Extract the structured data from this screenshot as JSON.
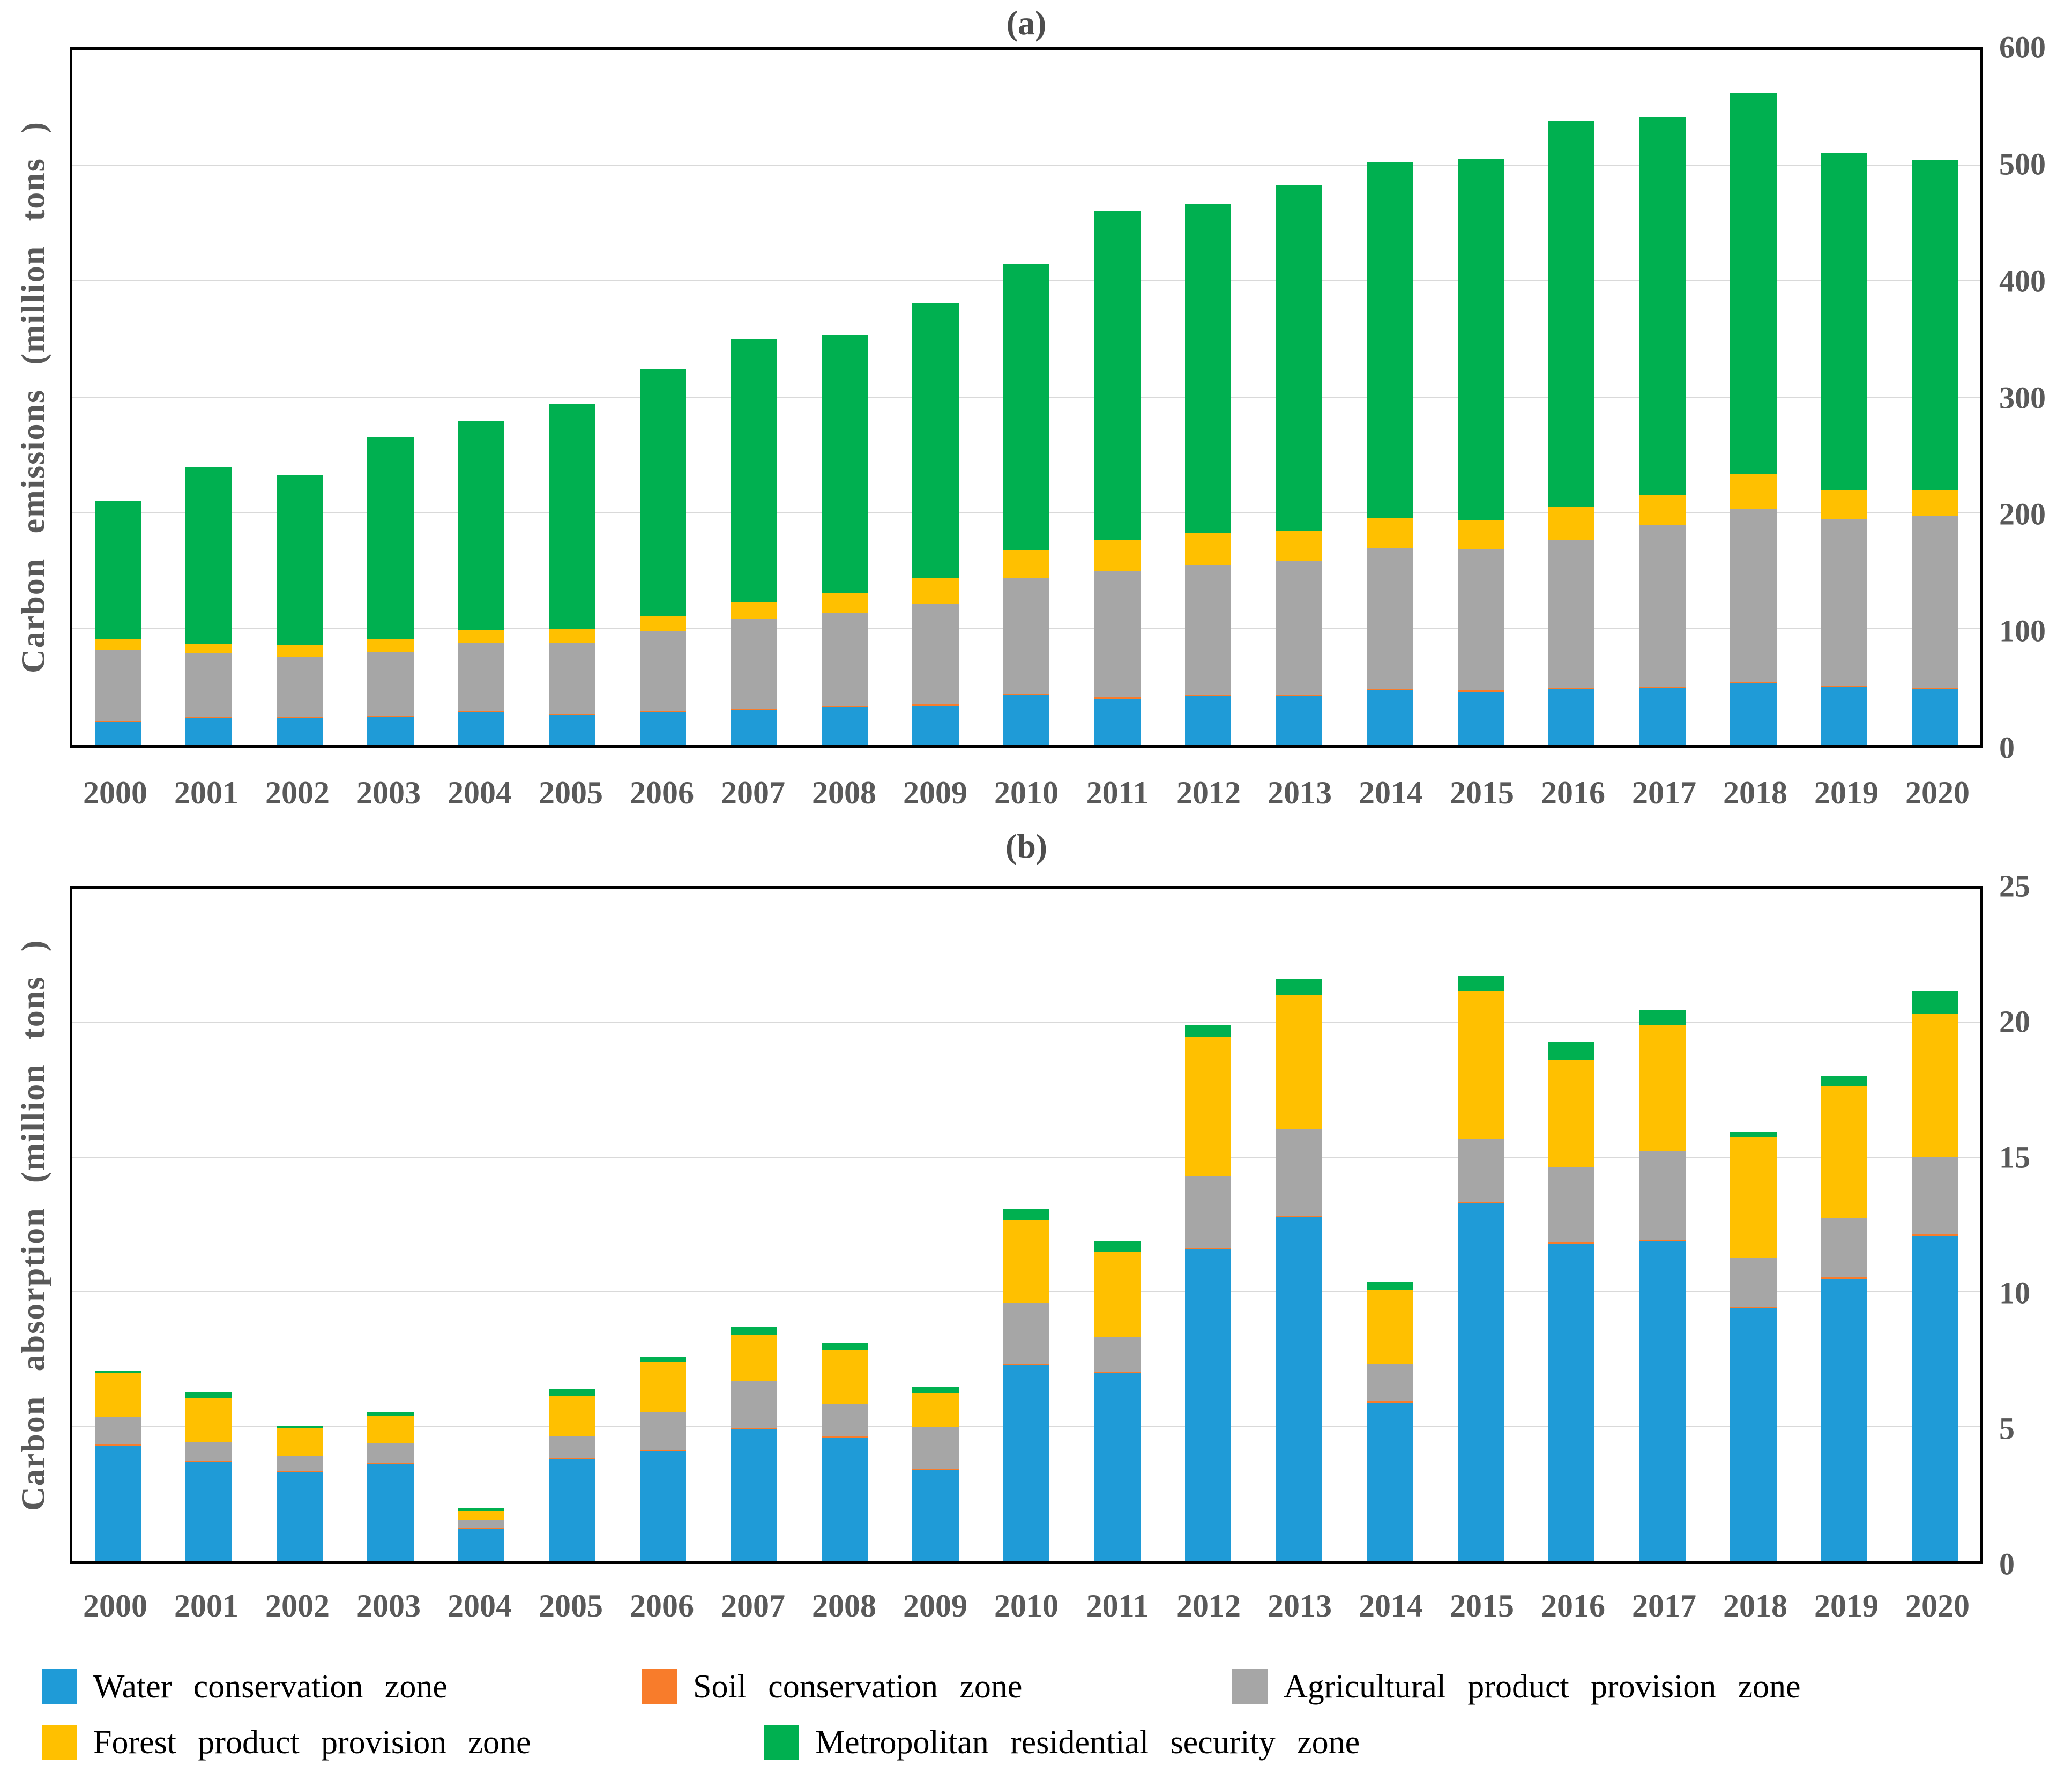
{
  "figure": {
    "background": "#ffffff",
    "text_color_axis": "#595959",
    "grid_color": "#d9d9d9",
    "border_color": "#000000"
  },
  "legend": {
    "items": [
      {
        "label": "Water conservation zone",
        "color": "#1f9bd7",
        "swatch": "blue-square-icon"
      },
      {
        "label": "Soil conservation zone",
        "color": "#f87c2b",
        "swatch": "orange-square-icon"
      },
      {
        "label": "Agricultural product provision zone",
        "color": "#a6a6a6",
        "swatch": "gray-square-icon"
      },
      {
        "label": "Forest product provision zone",
        "color": "#ffc000",
        "swatch": "yellow-square-icon"
      },
      {
        "label": "Metropolitan residential security zone",
        "color": "#00b050",
        "swatch": "green-square-icon"
      }
    ]
  },
  "chart_data": [
    {
      "type": "bar",
      "stacked": true,
      "title": "(a)",
      "ylabel": "Carbon emissions (million tons )",
      "xlabel": "",
      "ylim": [
        0,
        600
      ],
      "yticks": [
        0,
        100,
        200,
        300,
        400,
        500,
        600
      ],
      "y_axis_side": "right",
      "grid": true,
      "legend_position": "bottom",
      "categories": [
        "2000",
        "2001",
        "2002",
        "2003",
        "2004",
        "2005",
        "2006",
        "2007",
        "2008",
        "2009",
        "2010",
        "2011",
        "2012",
        "2013",
        "2014",
        "2015",
        "2016",
        "2017",
        "2018",
        "2019",
        "2020"
      ],
      "series": [
        {
          "name": "Water conservation zone",
          "color": "#1f9bd7",
          "values": [
            20,
            23,
            23,
            24,
            28,
            26,
            28,
            30,
            33,
            34,
            43,
            40,
            42,
            42,
            47,
            46,
            48,
            49,
            53,
            50,
            48
          ]
        },
        {
          "name": "Soil conservation zone",
          "color": "#f87c2b",
          "values": [
            1,
            1,
            1,
            1,
            1,
            1,
            1,
            1,
            1,
            1,
            1,
            1,
            1,
            1,
            1,
            1,
            1,
            1,
            1,
            1,
            1
          ]
        },
        {
          "name": "Agricultural product provision zone",
          "color": "#a6a6a6",
          "values": [
            61,
            55,
            52,
            55,
            59,
            61,
            69,
            78,
            80,
            87,
            100,
            109,
            112,
            116,
            122,
            122,
            128,
            140,
            150,
            144,
            149
          ]
        },
        {
          "name": "Forest product provision zone",
          "color": "#ffc000",
          "values": [
            9,
            8,
            10,
            11,
            11,
            12,
            13,
            14,
            17,
            22,
            24,
            27,
            28,
            26,
            26,
            25,
            29,
            26,
            30,
            25,
            22
          ]
        },
        {
          "name": "Metropolitan residential security zone",
          "color": "#00b050",
          "values": [
            120,
            153,
            147,
            175,
            181,
            194,
            214,
            227,
            223,
            237,
            247,
            284,
            284,
            298,
            307,
            312,
            333,
            326,
            329,
            291,
            285
          ]
        }
      ]
    },
    {
      "type": "bar",
      "stacked": true,
      "title": "(b)",
      "ylabel": "Carbon absorption (million tons )",
      "xlabel": "",
      "ylim": [
        0,
        25
      ],
      "yticks": [
        0,
        5,
        10,
        15,
        20,
        25
      ],
      "y_axis_side": "right",
      "grid": true,
      "legend_position": "bottom",
      "categories": [
        "2000",
        "2001",
        "2002",
        "2003",
        "2004",
        "2005",
        "2006",
        "2007",
        "2008",
        "2009",
        "2010",
        "2011",
        "2012",
        "2013",
        "2014",
        "2015",
        "2016",
        "2017",
        "2018",
        "2019",
        "2020"
      ],
      "series": [
        {
          "name": "Water conservation zone",
          "color": "#1f9bd7",
          "values": [
            4.3,
            3.7,
            3.3,
            3.6,
            1.2,
            3.8,
            4.1,
            4.9,
            4.6,
            3.4,
            7.3,
            7.0,
            11.6,
            12.8,
            5.9,
            13.3,
            11.8,
            11.9,
            9.4,
            10.5,
            12.1
          ]
        },
        {
          "name": "Soil conservation zone",
          "color": "#f87c2b",
          "values": [
            0.05,
            0.05,
            0.05,
            0.05,
            0.06,
            0.05,
            0.05,
            0.05,
            0.05,
            0.05,
            0.05,
            0.05,
            0.05,
            0.05,
            0.05,
            0.05,
            0.05,
            0.05,
            0.05,
            0.05,
            0.05
          ]
        },
        {
          "name": "Agricultural product provision zone",
          "color": "#a6a6a6",
          "values": [
            1.0,
            0.7,
            0.55,
            0.75,
            0.3,
            0.8,
            1.4,
            1.75,
            1.2,
            1.55,
            2.25,
            1.3,
            2.65,
            3.2,
            1.4,
            2.35,
            2.8,
            3.3,
            1.8,
            2.2,
            2.9
          ]
        },
        {
          "name": "Forest product provision zone",
          "color": "#ffc000",
          "values": [
            1.65,
            1.6,
            1.05,
            1.0,
            0.3,
            1.5,
            1.85,
            1.7,
            2.0,
            1.25,
            3.1,
            3.15,
            5.2,
            5.0,
            2.75,
            5.5,
            4.0,
            4.7,
            4.5,
            4.9,
            5.3
          ]
        },
        {
          "name": "Metropolitan residential security zone",
          "color": "#00b050",
          "values": [
            0.1,
            0.25,
            0.1,
            0.15,
            0.12,
            0.25,
            0.2,
            0.3,
            0.25,
            0.25,
            0.4,
            0.4,
            0.45,
            0.6,
            0.3,
            0.55,
            0.65,
            0.55,
            0.2,
            0.4,
            0.85
          ]
        }
      ]
    }
  ]
}
